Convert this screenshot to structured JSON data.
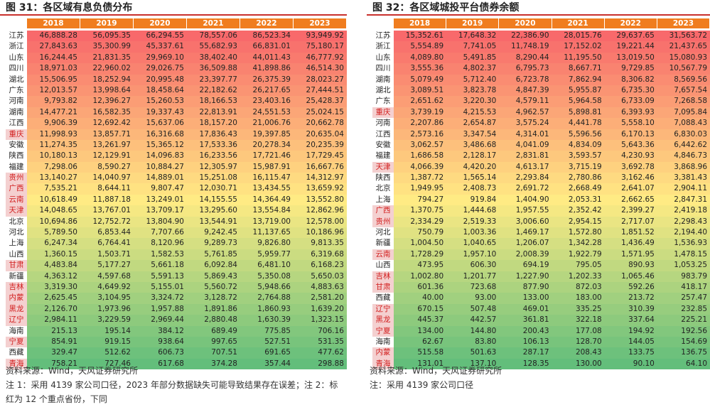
{
  "left": {
    "title": "图 31：各区域有息负债分布",
    "years": [
      "2018",
      "2019",
      "2020",
      "2021",
      "2022",
      "2023"
    ],
    "rows": [
      {
        "name": "江苏",
        "key": false,
        "values": [
          "46,888.28",
          "56,095.35",
          "66,294.55",
          "78,557.06",
          "86,523.34",
          "93,949.92"
        ]
      },
      {
        "name": "浙江",
        "key": false,
        "values": [
          "27,843.63",
          "35,300.99",
          "45,337.61",
          "55,682.93",
          "66,831.01",
          "75,180.17"
        ]
      },
      {
        "name": "山东",
        "key": false,
        "values": [
          "16,244.45",
          "21,831.35",
          "29,969.10",
          "38,402.40",
          "44,011.43",
          "46,777.92"
        ]
      },
      {
        "name": "四川",
        "key": false,
        "values": [
          "18,971.03",
          "22,960.02",
          "29,026.75",
          "36,509.88",
          "41,898.86",
          "46,514.30"
        ]
      },
      {
        "name": "湖北",
        "key": false,
        "values": [
          "15,506.95",
          "18,252.94",
          "20,995.48",
          "23,397.77",
          "26,375.39",
          "28,023.27"
        ]
      },
      {
        "name": "广东",
        "key": false,
        "values": [
          "12,013.57",
          "13,998.64",
          "18,458.64",
          "22,182.62",
          "26,217.65",
          "27,444.51"
        ]
      },
      {
        "name": "河南",
        "key": false,
        "values": [
          "9,793.82",
          "12,396.27",
          "15,260.53",
          "18,166.53",
          "23,403.16",
          "25,428.37"
        ]
      },
      {
        "name": "湖南",
        "key": false,
        "values": [
          "14,477.21",
          "16,582.35",
          "19,337.43",
          "22,813.91",
          "24,551.53",
          "25,024.15"
        ]
      },
      {
        "name": "江西",
        "key": false,
        "values": [
          "9,906.39",
          "12,692.42",
          "15,637.06",
          "18,157.20",
          "21,006.76",
          "20,662.78"
        ]
      },
      {
        "name": "重庆",
        "key": true,
        "values": [
          "11,998.93",
          "13,857.71",
          "16,316.68",
          "17,836.43",
          "19,397.85",
          "20,635.04"
        ]
      },
      {
        "name": "安徽",
        "key": false,
        "values": [
          "11,274.35",
          "13,261.97",
          "15,365.12",
          "17,533.36",
          "20,278.34",
          "20,235.39"
        ]
      },
      {
        "name": "陕西",
        "key": false,
        "values": [
          "10,180.13",
          "12,129.91",
          "14,096.83",
          "16,233.56",
          "17,721.46",
          "17,729.45"
        ]
      },
      {
        "name": "福建",
        "key": false,
        "values": [
          "7,298.06",
          "8,590.27",
          "10,884.27",
          "12,305.97",
          "15,987.91",
          "16,667.76"
        ]
      },
      {
        "name": "贵州",
        "key": true,
        "values": [
          "13,140.27",
          "14,040.97",
          "14,889.01",
          "15,251.08",
          "16,115.47",
          "14,312.97"
        ]
      },
      {
        "name": "广西",
        "key": true,
        "values": [
          "7,535.21",
          "8,644.11",
          "9,807.47",
          "12,030.71",
          "13,434.55",
          "13,659.92"
        ]
      },
      {
        "name": "云南",
        "key": true,
        "values": [
          "10,618.49",
          "11,887.18",
          "13,249.01",
          "14,155.55",
          "14,364.49",
          "13,552.80"
        ]
      },
      {
        "name": "天津",
        "key": true,
        "values": [
          "14,048.65",
          "13,767.01",
          "13,709.17",
          "13,295.60",
          "13,554.84",
          "12,862.96"
        ]
      },
      {
        "name": "北京",
        "key": false,
        "values": [
          "10,694.86",
          "12,752.72",
          "13,804.90",
          "13,544.91",
          "13,719.00",
          "12,578.00"
        ]
      },
      {
        "name": "河北",
        "key": false,
        "values": [
          "5,789.50",
          "6,853.44",
          "7,707.66",
          "9,242.45",
          "11,137.65",
          "10,186.96"
        ]
      },
      {
        "name": "上海",
        "key": false,
        "values": [
          "6,247.34",
          "6,764.41",
          "8,120.96",
          "9,289.73",
          "9,826.80",
          "9,813.35"
        ]
      },
      {
        "name": "山西",
        "key": false,
        "values": [
          "1,360.15",
          "1,503.71",
          "1,582.53",
          "5,761.85",
          "5,959.77",
          "6,319.68"
        ]
      },
      {
        "name": "甘肃",
        "key": true,
        "values": [
          "4,483.84",
          "5,177.27",
          "5,661.18",
          "6,092.84",
          "6,481.10",
          "6,168.23"
        ]
      },
      {
        "name": "新疆",
        "key": false,
        "values": [
          "4,363.12",
          "4,597.68",
          "5,591.13",
          "5,869.43",
          "5,350.08",
          "5,650.03"
        ]
      },
      {
        "name": "吉林",
        "key": true,
        "values": [
          "3,319.30",
          "4,649.92",
          "5,155.01",
          "5,560.72",
          "5,948.66",
          "4,883.63"
        ]
      },
      {
        "name": "内蒙古",
        "key": true,
        "values": [
          "2,625.45",
          "3,104.95",
          "3,324.72",
          "3,128.72",
          "2,764.88",
          "2,581.20"
        ]
      },
      {
        "name": "黑龙江",
        "key": true,
        "values": [
          "2,126.70",
          "1,973.96",
          "1,957.88",
          "1,891.86",
          "1,860.93",
          "1,639.20"
        ]
      },
      {
        "name": "辽宁",
        "key": true,
        "values": [
          "2,984.11",
          "3,229.59",
          "2,969.44",
          "2,880.48",
          "1,630.39",
          "1,323.15"
        ]
      },
      {
        "name": "海南",
        "key": false,
        "values": [
          "215.13",
          "195.14",
          "384.12",
          "689.49",
          "775.85",
          "706.16"
        ]
      },
      {
        "name": "宁夏",
        "key": true,
        "values": [
          "854.91",
          "919.15",
          "938.64",
          "997.65",
          "527.51",
          "531.35"
        ]
      },
      {
        "name": "西藏",
        "key": false,
        "values": [
          "329.47",
          "512.62",
          "606.73",
          "707.51",
          "691.65",
          "477.62"
        ]
      },
      {
        "name": "青海",
        "key": true,
        "values": [
          "758.21",
          "727.46",
          "617.68",
          "374.28",
          "357.44",
          "298.88"
        ]
      }
    ],
    "notes": [
      "资料来源：Wind，天风证券研究所",
      "注 1：采用 4139 家公司口径，2023 年部分数据缺失可能导致结果存在误差；注 2：标红为 12 个重点省份，下同"
    ]
  },
  "right": {
    "title": "图 32：各区域城投平台债券余额",
    "years": [
      "2018",
      "2019",
      "2020",
      "2021",
      "2022",
      "2023"
    ],
    "rows": [
      {
        "name": "江苏",
        "key": false,
        "values": [
          "15,352.61",
          "17,648.32",
          "22,386.90",
          "28,015.76",
          "29,637.65",
          "31,563.72"
        ]
      },
      {
        "name": "浙江",
        "key": false,
        "values": [
          "5,554.89",
          "7,741.05",
          "11,748.19",
          "17,152.02",
          "19,221.44",
          "21,437.65"
        ]
      },
      {
        "name": "山东",
        "key": false,
        "values": [
          "4,089.80",
          "5,491.85",
          "8,290.44",
          "11,195.50",
          "13,019.50",
          "15,080.93"
        ]
      },
      {
        "name": "四川",
        "key": false,
        "values": [
          "3,555.36",
          "4,802.37",
          "6,795.73",
          "8,667.71",
          "9,729.85",
          "10,567.79"
        ]
      },
      {
        "name": "湖南",
        "key": false,
        "values": [
          "5,079.49",
          "5,712.40",
          "6,723.78",
          "7,862.94",
          "8,306.82",
          "8,569.56"
        ]
      },
      {
        "name": "湖北",
        "key": false,
        "values": [
          "3,089.51",
          "3,823.78",
          "4,847.39",
          "5,955.87",
          "6,735.30",
          "7,657.54"
        ]
      },
      {
        "name": "广东",
        "key": false,
        "values": [
          "2,651.62",
          "3,220.30",
          "4,579.11",
          "5,964.58",
          "6,733.09",
          "7,268.58"
        ]
      },
      {
        "name": "重庆",
        "key": true,
        "values": [
          "3,739.19",
          "4,215.53",
          "4,962.57",
          "5,898.81",
          "6,393.93",
          "7,095.84"
        ]
      },
      {
        "name": "河南",
        "key": false,
        "values": [
          "2,207.86",
          "2,654.87",
          "3,575.24",
          "4,441.78",
          "5,558.10",
          "7,088.43"
        ]
      },
      {
        "name": "江西",
        "key": false,
        "values": [
          "2,573.16",
          "3,347.54",
          "4,314.01",
          "5,596.56",
          "6,170.13",
          "6,830.03"
        ]
      },
      {
        "name": "安徽",
        "key": false,
        "values": [
          "3,062.57",
          "3,486.68",
          "4,041.09",
          "4,834.09",
          "5,643.36",
          "6,442.62"
        ]
      },
      {
        "name": "福建",
        "key": false,
        "values": [
          "1,686.58",
          "2,128.17",
          "2,831.81",
          "3,593.57",
          "4,230.93",
          "4,846.73"
        ]
      },
      {
        "name": "天津",
        "key": true,
        "values": [
          "4,066.39",
          "4,420.20",
          "4,613.17",
          "3,715.19",
          "3,692.78",
          "3,868.96"
        ]
      },
      {
        "name": "陕西",
        "key": false,
        "values": [
          "1,387.72",
          "1,565.14",
          "2,293.84",
          "2,780.86",
          "3,162.46",
          "3,381.43"
        ]
      },
      {
        "name": "北京",
        "key": false,
        "values": [
          "1,949.95",
          "2,408.73",
          "2,691.72",
          "2,668.49",
          "2,641.07",
          "2,904.11"
        ]
      },
      {
        "name": "上海",
        "key": false,
        "values": [
          "794.27",
          "919.84",
          "1,404.90",
          "2,053.31",
          "2,662.65",
          "2,847.31"
        ]
      },
      {
        "name": "广西",
        "key": true,
        "values": [
          "1,370.75",
          "1,444.68",
          "1,957.55",
          "2,352.42",
          "2,399.27",
          "2,419.18"
        ]
      },
      {
        "name": "贵州",
        "key": true,
        "values": [
          "2,334.29",
          "2,519.33",
          "3,006.60",
          "2,954.15",
          "2,717.07",
          "2,298.43"
        ]
      },
      {
        "name": "河北",
        "key": false,
        "values": [
          "750.79",
          "1,003.36",
          "1,469.17",
          "1,572.80",
          "1,851.52",
          "2,194.40"
        ]
      },
      {
        "name": "新疆",
        "key": false,
        "values": [
          "1,004.50",
          "1,040.65",
          "1,206.07",
          "1,342.28",
          "1,436.49",
          "1,536.93"
        ]
      },
      {
        "name": "云南",
        "key": true,
        "values": [
          "1,728.29",
          "1,957.10",
          "2,008.39",
          "1,922.79",
          "1,571.95",
          "1,478.15"
        ]
      },
      {
        "name": "山西",
        "key": false,
        "values": [
          "473.95",
          "606.30",
          "694.19",
          "795.05",
          "890.93",
          "1,053.25"
        ]
      },
      {
        "name": "吉林",
        "key": true,
        "values": [
          "1,002.80",
          "1,201.77",
          "1,227.90",
          "1,202.33",
          "1,065.46",
          "983.79"
        ]
      },
      {
        "name": "甘肃",
        "key": true,
        "values": [
          "601.36",
          "723.68",
          "877.90",
          "872.03",
          "592.26",
          "418.17"
        ]
      },
      {
        "name": "西藏",
        "key": false,
        "values": [
          "40.00",
          "93.00",
          "133.00",
          "183.00",
          "213.72",
          "257.47"
        ]
      },
      {
        "name": "辽宁",
        "key": true,
        "values": [
          "670.15",
          "507.48",
          "469.01",
          "335.25",
          "310.39",
          "232.85"
        ]
      },
      {
        "name": "黑龙江",
        "key": true,
        "values": [
          "445.37",
          "442.57",
          "361.81",
          "322.18",
          "337.64",
          "225.21"
        ]
      },
      {
        "name": "宁夏",
        "key": true,
        "values": [
          "134.00",
          "144.80",
          "200.43",
          "177.08",
          "194.92",
          "192.56"
        ]
      },
      {
        "name": "海南",
        "key": false,
        "values": [
          "62.67",
          "83.80",
          "106.13",
          "128.70",
          "144.05",
          "154.69"
        ]
      },
      {
        "name": "内蒙古",
        "key": true,
        "values": [
          "515.58",
          "501.63",
          "287.17",
          "208.43",
          "133.75",
          "136.75"
        ]
      },
      {
        "name": "青海",
        "key": true,
        "values": [
          "131.01",
          "137.10",
          "128.35",
          "130.00",
          "90.10",
          "64.10"
        ]
      }
    ],
    "notes": [
      "资料来源：Wind，天风证券研究所",
      "注：采用 4139 家公司口径"
    ]
  }
}
